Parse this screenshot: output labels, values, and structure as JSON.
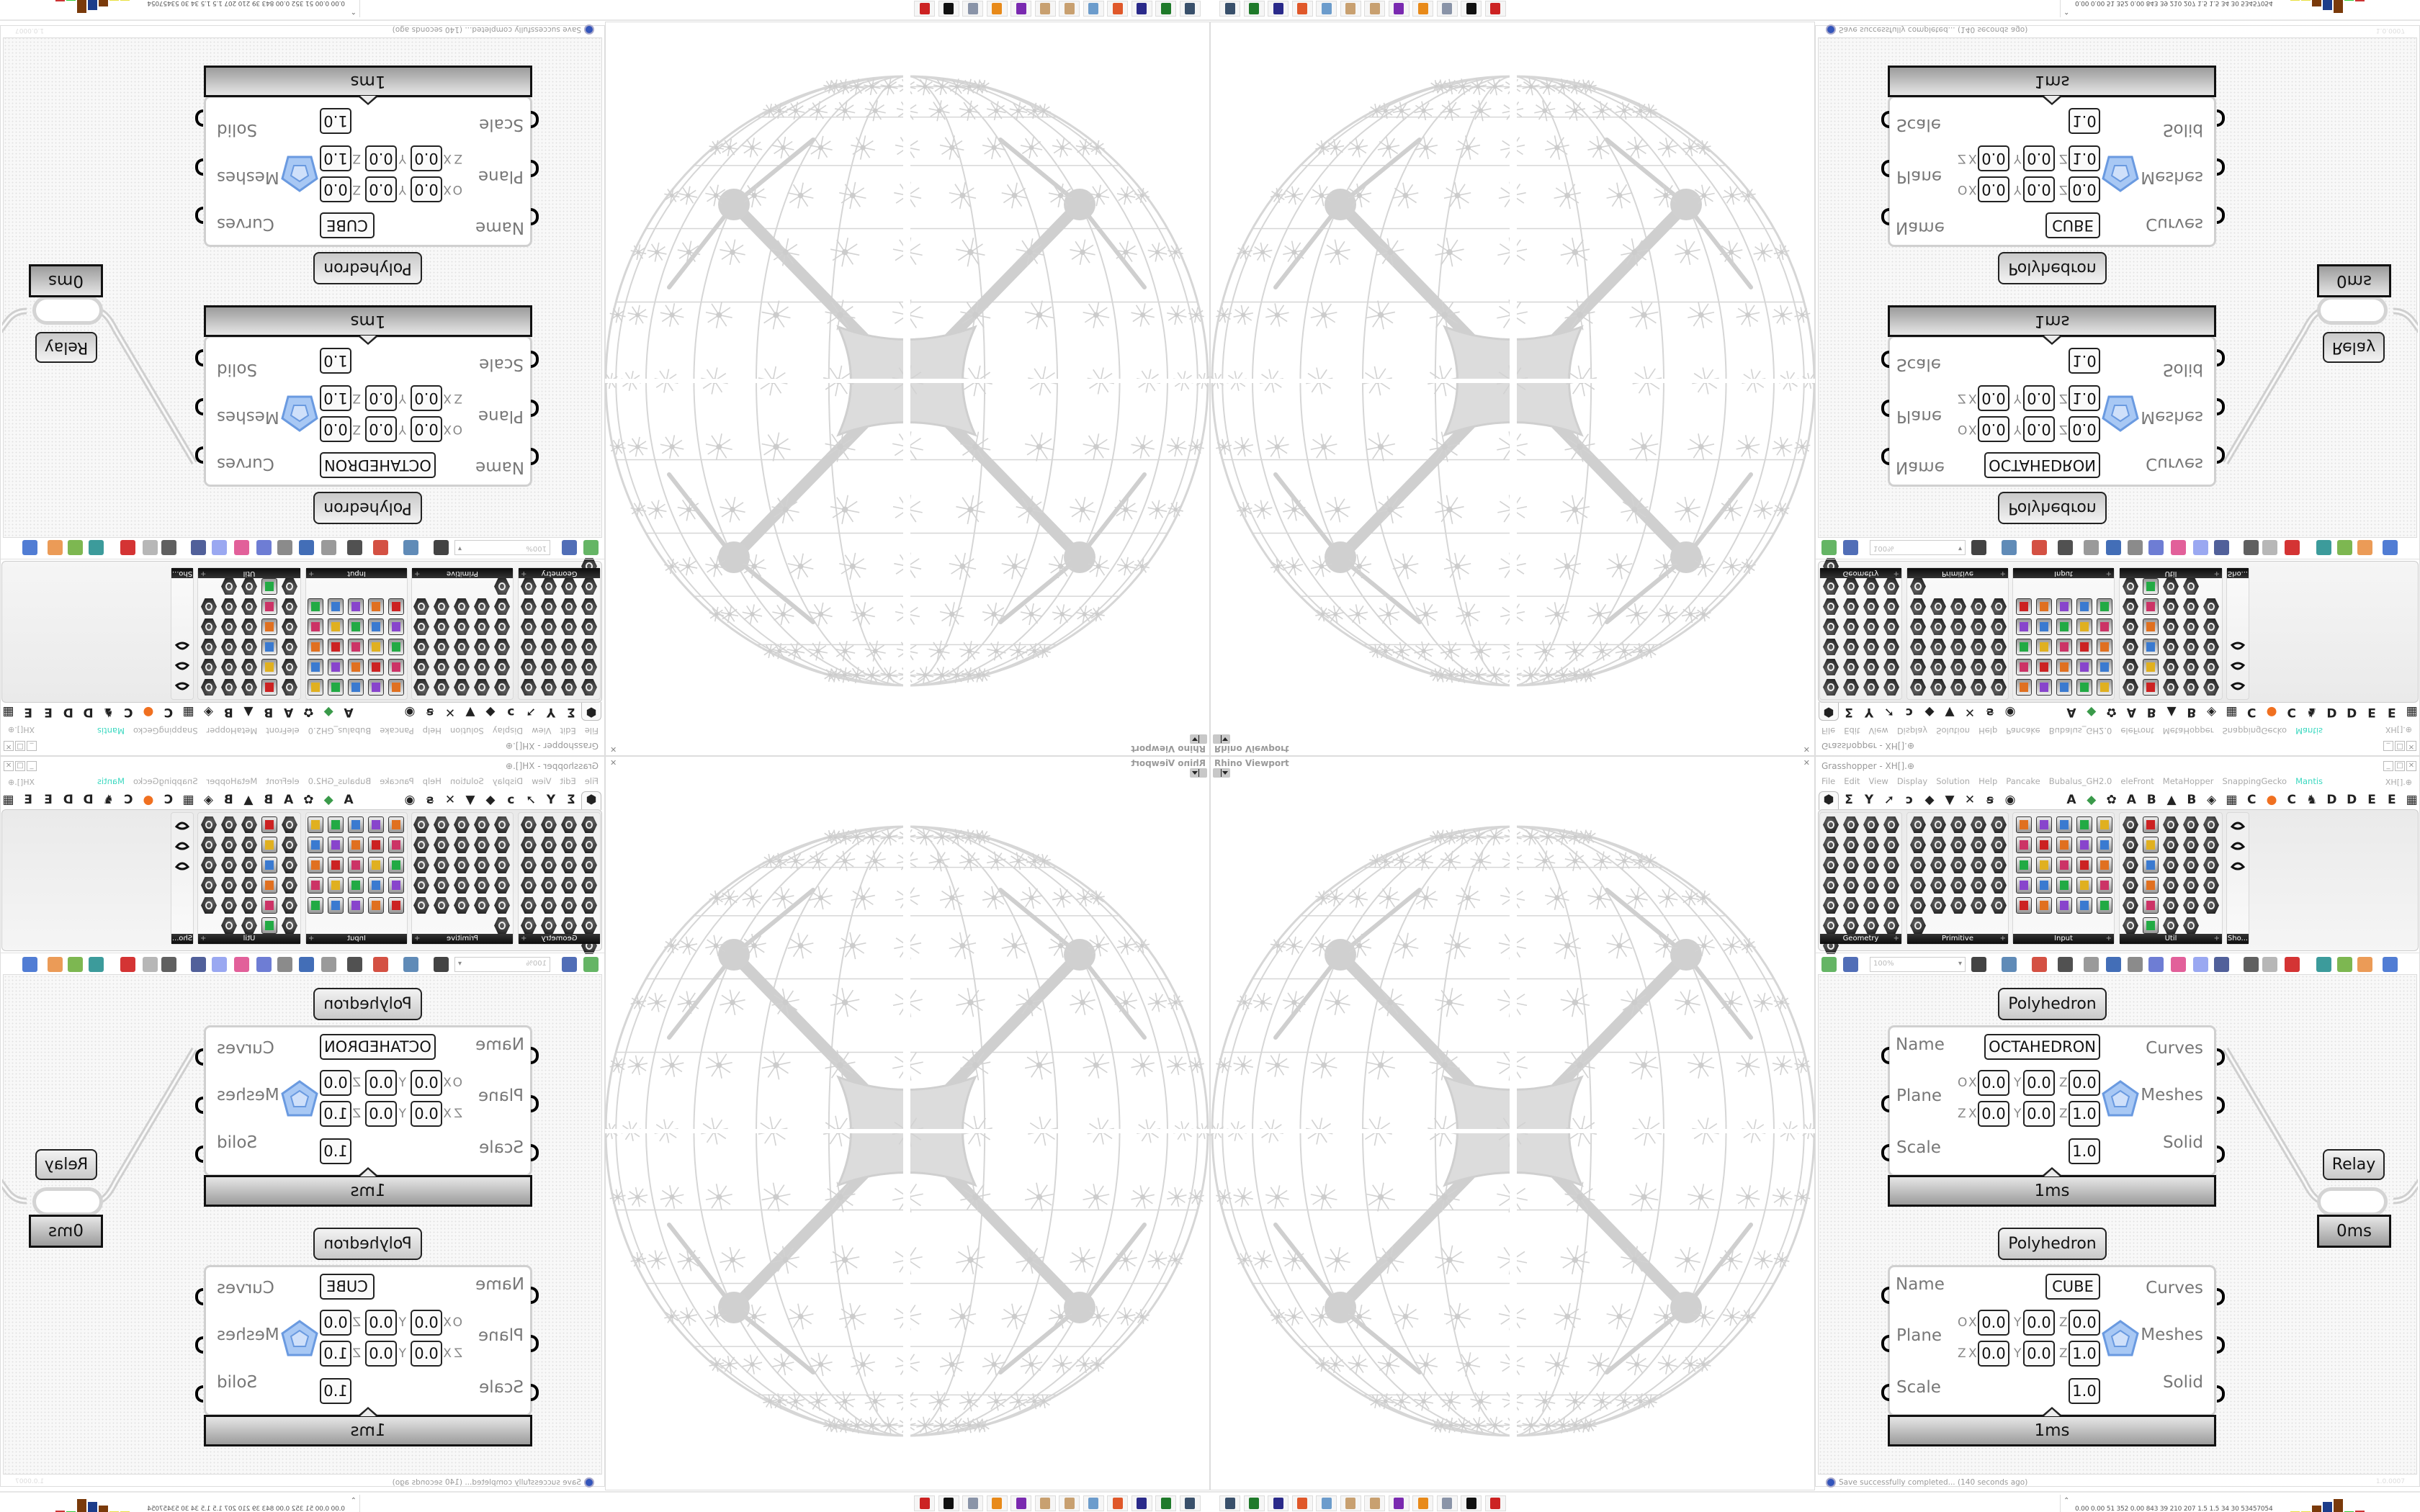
{
  "viewport": {
    "title": "Rhino Viewport",
    "close_icon": "close-icon",
    "menu_icon": "dropdown-icon"
  },
  "taskbar": {
    "apps": [
      {
        "name": "remote-desktop",
        "color": "#39506b"
      },
      {
        "name": "terminal",
        "color": "#1f7a2a"
      },
      {
        "name": "floppy-64",
        "color": "#2a2a8a"
      },
      {
        "name": "firefox",
        "color": "#e0582a"
      },
      {
        "name": "calculator",
        "color": "#6c9ccc"
      },
      {
        "name": "paint-palette",
        "color": "#c8a070"
      },
      {
        "name": "paint-palette",
        "color": "#c8a070"
      },
      {
        "name": "purple-app",
        "color": "#7a2ab0"
      },
      {
        "name": "blender",
        "color": "#e88a1a"
      },
      {
        "name": "scroll",
        "color": "#8a94a8"
      },
      {
        "name": "rhino",
        "color": "#111111"
      },
      {
        "name": "red-gear",
        "color": "#cc2222"
      }
    ],
    "stats": "0.00 0.00  51   352  0.00  843   39   210   207   1.5   1.5   34   30  53457054",
    "meter": [
      {
        "color": "#e8e040",
        "level": 0.05
      },
      {
        "color": "#e8e040",
        "level": 0.08
      },
      {
        "color": "#e8e040",
        "level": 0.08
      },
      {
        "color": "#7a3a0a",
        "level": 0.5
      },
      {
        "color": "#1c3c8a",
        "level": 0.75
      },
      {
        "color": "#7a3a0a",
        "level": 0.95
      },
      {
        "color": "#33cc33",
        "level": 0.08
      },
      {
        "color": "#cc3333",
        "level": 0.15
      }
    ]
  },
  "grasshopper": {
    "title": "Grasshopper - XH[].⊕",
    "window_controls": [
      "_",
      "□",
      "✕"
    ],
    "menu": [
      "File",
      "Edit",
      "View",
      "Display",
      "Solution",
      "Help",
      "Pancake",
      "Bubalus_GH2.0",
      "eleFront",
      "MetaHopper",
      "SnappingGecko",
      "Mantis"
    ],
    "menu_accent": "#3ad8c0",
    "doc_label": "XH[].⊕",
    "tabs_left": [
      "⬢",
      "Σ",
      "Y",
      "➚",
      "ↄ",
      "◆",
      "▼",
      "✕",
      "ꞩ",
      "◉"
    ],
    "tabs_right": [
      "A",
      "◆",
      "✿",
      "A",
      "B",
      "▲",
      "B",
      "◈",
      "▦",
      "C",
      "●",
      "C",
      "♞",
      "D",
      "D",
      "E",
      "E",
      "▦"
    ],
    "tabs_right_colors": {
      "1": "#3a9a4a",
      "10": "#f07020"
    },
    "panels": [
      {
        "label": "Geometry",
        "icons": [
          "point",
          "line",
          "plane",
          "spiral",
          "delete",
          "box-face",
          "brep",
          "field",
          "vector",
          "rectangle",
          "text-tag",
          "wave",
          "arrow",
          "geometry",
          "circle",
          "cube",
          "cylinder",
          "atom",
          "curve",
          "mesh",
          "surface",
          "swirl",
          "torus",
          "dome",
          "magnet"
        ]
      },
      {
        "label": "Primitive",
        "icons": [
          "circle-param",
          "star",
          "matrix",
          "arc",
          "path",
          "polygon",
          "stripes",
          "clock",
          "cursor",
          "gear",
          "scissors",
          "text",
          "pattern",
          "camera",
          "seven",
          "cross",
          "tree",
          "leaf",
          "zero-one",
          "hash",
          "data",
          "document",
          "letter-a",
          "id",
          "sphere",
          "tilde"
        ]
      },
      {
        "label": "Input",
        "icons": [
          "download",
          "black-square",
          "color-cube",
          "3dm",
          "infinity",
          "graph",
          "gizmo",
          "paint",
          "xyz",
          "toggle",
          "gradient",
          "color-wheel",
          "img",
          "knob",
          "checker",
          "graph-mapper",
          "pdb",
          "slider",
          "calendar",
          "target",
          "shp",
          "list",
          "clock",
          "spectrum",
          "id-tag"
        ]
      },
      {
        "label": "Util",
        "icons": [
          "cherry",
          "horseshoe",
          "arrow-right",
          "c-param",
          "a-param",
          "play",
          "record",
          "search",
          "spiral",
          "disc",
          "axes",
          "pen",
          "timer",
          "seven",
          "flask",
          "tree",
          "button",
          "egg",
          "key",
          "function",
          "ring",
          "refresh",
          "premiere",
          "zero-one",
          "palette",
          "abc",
          "arrow",
          "gauge",
          "x-param"
        ]
      },
      {
        "label": "Sho...",
        "icons": [
          "viewer-glasses",
          "viewer-glasses",
          "presentation"
        ]
      }
    ],
    "toolbar": {
      "zoom": "100%",
      "icons": [
        {
          "name": "new-document",
          "color": "#4aa84a"
        },
        {
          "name": "save",
          "color": "#3355aa"
        },
        {
          "name": "zoom-extents",
          "color": "#222222"
        },
        {
          "name": "preview-eye",
          "color": "#4477aa"
        },
        {
          "name": "sketch",
          "color": "#cc3322"
        },
        {
          "name": "cluster",
          "color": "#333333"
        },
        {
          "name": "email",
          "color": "#888888"
        },
        {
          "name": "gha",
          "color": "#2255aa"
        },
        {
          "name": "canvas-image",
          "color": "#777777"
        },
        {
          "name": "search",
          "color": "#5566cc"
        },
        {
          "name": "package",
          "color": "#dd4488"
        },
        {
          "name": "bulb",
          "color": "#8899ee"
        },
        {
          "name": "wires",
          "color": "#334488"
        },
        {
          "name": "mesh-preview",
          "color": "#444444"
        },
        {
          "name": "wireframe",
          "color": "#aaaaaa"
        },
        {
          "name": "shaded",
          "color": "#cc1111"
        },
        {
          "name": "teal-shape",
          "color": "#1a8a8a"
        },
        {
          "name": "green-shape",
          "color": "#66aa33"
        },
        {
          "name": "orange-sphere",
          "color": "#e88a3a"
        },
        {
          "name": "blue-sphere",
          "color": "#3366cc"
        }
      ]
    },
    "components": [
      {
        "title": "Polyhedron",
        "inputs": [
          "Name",
          "Plane",
          "Scale"
        ],
        "outputs": [
          "Curves",
          "Meshes",
          "Solid"
        ],
        "name_value": "OCTAHEDRON",
        "origin_label": "O",
        "zaxis_label": "Z",
        "axis_labels": [
          "X",
          "Y",
          "Z"
        ],
        "origin": [
          "0.0",
          "0.0",
          "0.0"
        ],
        "zaxis": [
          "0.0",
          "0.0",
          "1.0"
        ],
        "scale": "1.0",
        "time": "1ms"
      },
      {
        "title": "Polyhedron",
        "inputs": [
          "Name",
          "Plane",
          "Scale"
        ],
        "outputs": [
          "Curves",
          "Meshes",
          "Solid"
        ],
        "name_value": "CUBE",
        "origin_label": "O",
        "zaxis_label": "Z",
        "axis_labels": [
          "X",
          "Y",
          "Z"
        ],
        "origin": [
          "0.0",
          "0.0",
          "0.0"
        ],
        "zaxis": [
          "0.0",
          "0.0",
          "1.0"
        ],
        "scale": "1.0",
        "time": "1ms"
      }
    ],
    "relay": {
      "label": "Relay",
      "time": "0ms"
    },
    "status": {
      "message": "Save successfully completed... (140 seconds ago)",
      "version": "1.0.0007"
    }
  }
}
